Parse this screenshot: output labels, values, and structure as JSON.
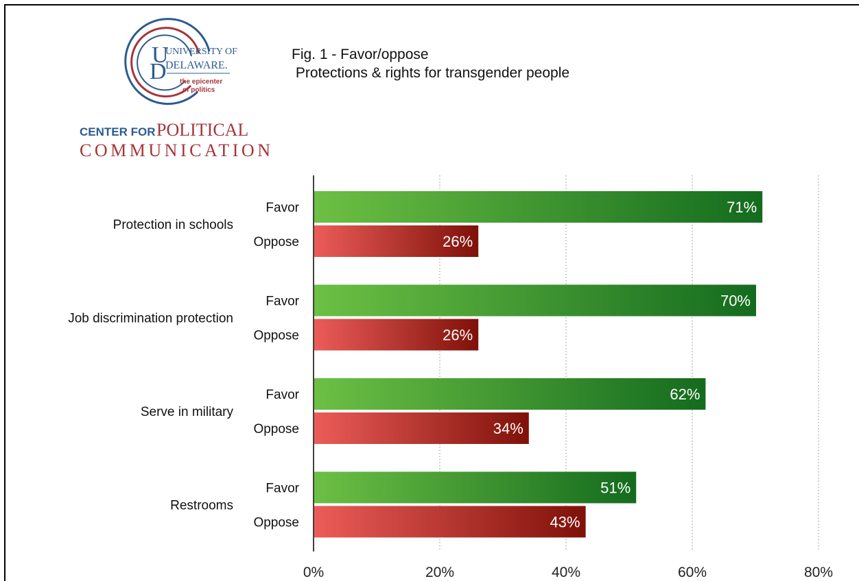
{
  "logo": {
    "university_line1": "UNIVERSITY OF",
    "university_line2": "DELAWARE.",
    "tagline_line1": "the epicenter",
    "tagline_line2": "of politics",
    "center_prefix": "CENTER FOR",
    "center_word": "POLITICAL",
    "center_line2": "COMMUNICATION",
    "colors": {
      "blue": "#2c5b8f",
      "red": "#a5353a"
    }
  },
  "title": {
    "line1": "Fig. 1 - Favor/oppose",
    "line2": " Protections & rights for transgender people"
  },
  "chart_data": {
    "type": "bar",
    "orientation": "horizontal",
    "categories": [
      "Protection in schools",
      "Job discrimination protection",
      "Serve in military",
      "Restrooms"
    ],
    "series": [
      {
        "name": "Favor",
        "values": [
          71,
          70,
          62,
          51
        ],
        "color_start": "#6cc044",
        "color_end": "#146b1e"
      },
      {
        "name": "Oppose",
        "values": [
          26,
          26,
          34,
          43
        ],
        "color_start": "#ec5c58",
        "color_end": "#7e1109"
      }
    ],
    "data_labels": [
      [
        "71%",
        "70%",
        "62%",
        "51%"
      ],
      [
        "26%",
        "26%",
        "34%",
        "43%"
      ]
    ],
    "x_ticks": [
      0,
      20,
      40,
      60,
      80
    ],
    "x_tick_labels": [
      "0%",
      "20%",
      "40%",
      "60%",
      "80%"
    ],
    "xlim": [
      0,
      80
    ],
    "grid": "vertical dotted",
    "legend": "none"
  }
}
